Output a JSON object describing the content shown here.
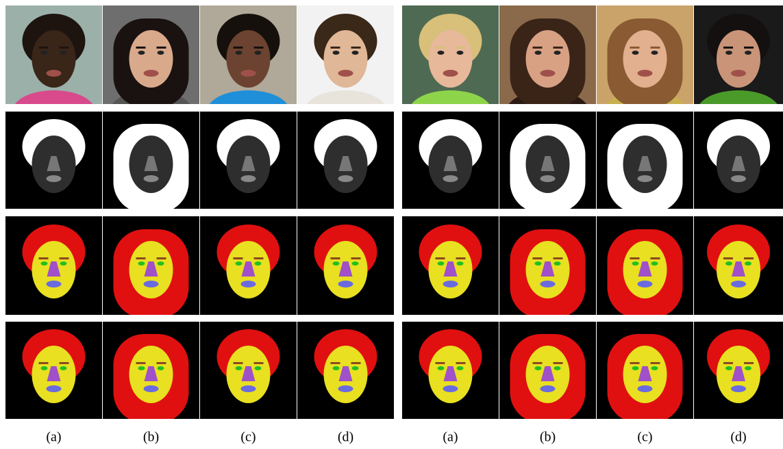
{
  "left": {
    "captions": [
      "(a)",
      "(b)",
      "(c)",
      "(d)"
    ]
  },
  "right": {
    "captions": [
      "(a)",
      "(b)",
      "(c)",
      "(d)"
    ]
  }
}
